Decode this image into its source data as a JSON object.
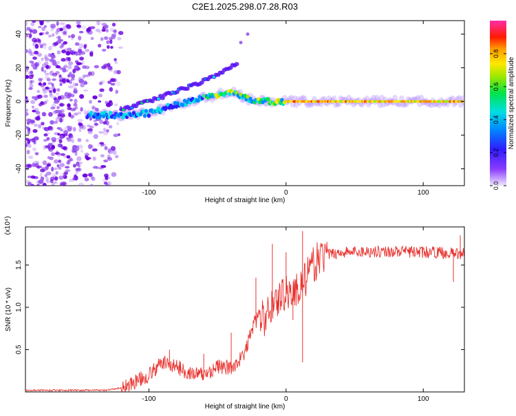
{
  "title": "C2E1.2025.298.07.28.R03",
  "colors": {
    "snr_line": "#e8312d",
    "scatter": "#6a00e0",
    "axis": "#000000"
  },
  "chart_data": [
    {
      "type": "heatmap",
      "title": "C2E1.2025.298.07.28.R03",
      "xlabel": "Height of straight line (km)",
      "ylabel": "Frequency (Hz)",
      "xlim": [
        -190,
        130
      ],
      "ylim": [
        -50,
        48
      ],
      "xticks": [
        -100,
        0,
        100
      ],
      "yticks": [
        -40,
        -20,
        0,
        20,
        40
      ],
      "xtick_labels": [
        "-100",
        "0",
        "100"
      ],
      "ytick_labels": [
        "-40",
        "-20",
        "0",
        "20",
        "40"
      ],
      "colorbar": {
        "label": "Normalized spectral amplitude",
        "range": [
          0,
          1
        ],
        "ticks": [
          "0.0",
          "0.2",
          "0.4",
          "0.6",
          "0.8"
        ]
      },
      "features": [
        {
          "name": "noise-region",
          "x_range": [
            -190,
            -120
          ],
          "y_range": [
            -50,
            48
          ]
        },
        {
          "name": "main-trace",
          "points": [
            [
              -145,
              -8
            ],
            [
              -120,
              -8
            ],
            [
              -100,
              -7
            ],
            [
              -80,
              -2
            ],
            [
              -60,
              2
            ],
            [
              -40,
              6
            ],
            [
              -30,
              2
            ],
            [
              -20,
              0
            ],
            [
              -10,
              0
            ],
            [
              0,
              0
            ],
            [
              130,
              0
            ]
          ]
        },
        {
          "name": "upper-branch",
          "points": [
            [
              -120,
              -5
            ],
            [
              -100,
              0
            ],
            [
              -80,
              6
            ],
            [
              -60,
              12
            ],
            [
              -45,
              18
            ],
            [
              -36,
              22
            ]
          ]
        },
        {
          "name": "isolated-points",
          "points": [
            [
              -33,
              35
            ],
            [
              -28,
              40
            ]
          ]
        }
      ]
    },
    {
      "type": "line",
      "xlabel": "Height of straight line (km)",
      "ylabel": "SNR (10 * v/v)",
      "yscale_label": "(x10⁴)",
      "xlim": [
        -190,
        130
      ],
      "ylim": [
        0,
        1.95
      ],
      "xticks": [
        -100,
        0,
        100
      ],
      "yticks": [
        0.5,
        1.0,
        1.5
      ],
      "xtick_labels": [
        "-100",
        "0",
        "100"
      ],
      "ytick_labels": [
        "0.5",
        "1.0",
        "1.5"
      ],
      "series": [
        {
          "name": "SNR",
          "envelope": {
            "x": [
              -190,
              -160,
              -130,
              -120,
              -110,
              -100,
              -90,
              -80,
              -70,
              -60,
              -50,
              -40,
              -30,
              -25,
              -20,
              -15,
              -10,
              -5,
              0,
              5,
              10,
              15,
              20,
              25,
              30,
              40,
              60,
              80,
              100,
              110,
              120,
              130
            ],
            "y": [
              0.02,
              0.02,
              0.02,
              0.05,
              0.12,
              0.2,
              0.35,
              0.3,
              0.22,
              0.2,
              0.3,
              0.28,
              0.45,
              0.75,
              0.9,
              0.85,
              1.05,
              1.1,
              1.2,
              1.15,
              1.25,
              1.35,
              1.5,
              1.6,
              1.62,
              1.65,
              1.66,
              1.66,
              1.65,
              1.65,
              1.64,
              1.63
            ]
          },
          "spikes": [
            [
              -10,
              1.75
            ],
            [
              0,
              1.65
            ],
            [
              12,
              1.9
            ],
            [
              12,
              0.35
            ],
            [
              17,
              1.55
            ],
            [
              5,
              0.85
            ],
            [
              -22,
              1.35
            ],
            [
              -40,
              0.7
            ],
            [
              -85,
              0.5
            ],
            [
              -60,
              0.45
            ],
            [
              127,
              1.85
            ],
            [
              122,
              1.3
            ]
          ]
        }
      ]
    }
  ]
}
